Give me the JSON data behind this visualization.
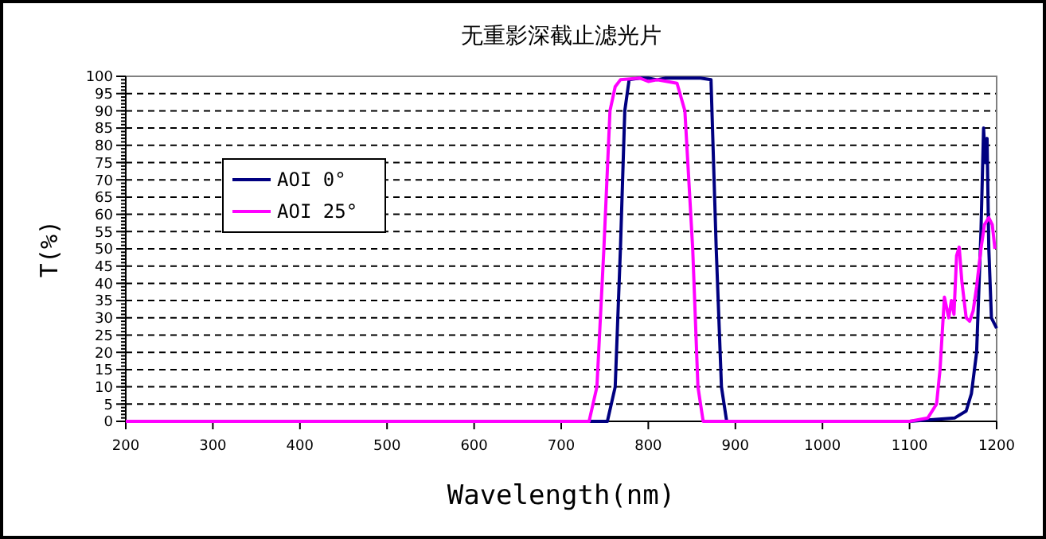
{
  "chart_data": {
    "type": "line",
    "title": "无重影深截止滤光片",
    "xlabel": "Wavelength(nm)",
    "ylabel": "T(%)",
    "xlim": [
      200,
      1200
    ],
    "xticks": [
      200,
      300,
      400,
      500,
      600,
      700,
      800,
      900,
      1000,
      1100,
      1200
    ],
    "ylim": [
      0,
      100
    ],
    "yticks": [
      0,
      5,
      10,
      15,
      20,
      25,
      30,
      35,
      40,
      45,
      50,
      55,
      60,
      65,
      70,
      75,
      80,
      85,
      90,
      95,
      100
    ],
    "grid": "y",
    "legend": "top left",
    "marker": "none",
    "line_style": "solid",
    "series": [
      {
        "name": "AOI 0°",
        "color": "#000080",
        "x": [
          200,
          700,
          753,
          762,
          768,
          773,
          778,
          790,
          800,
          810,
          820,
          840,
          860,
          872,
          878,
          884,
          890,
          900,
          1000,
          1100,
          1152,
          1165,
          1171,
          1177,
          1182,
          1185,
          1187,
          1189,
          1191,
          1194,
          1200
        ],
        "values": [
          0,
          0,
          0,
          10,
          50,
          90,
          99,
          99.5,
          99.5,
          99,
          99.5,
          99.5,
          99.5,
          99,
          50,
          10,
          0,
          0,
          0,
          0,
          1,
          3,
          8,
          20,
          55,
          85,
          75,
          82,
          50,
          30,
          27
        ]
      },
      {
        "name": "AOI 25°",
        "color": "#ff00ff",
        "x": [
          200,
          500,
          700,
          732,
          741,
          749,
          756,
          762,
          768,
          790,
          800,
          810,
          833,
          842,
          851,
          857,
          863,
          900,
          1000,
          1100,
          1121,
          1131,
          1135,
          1140,
          1145,
          1148,
          1151,
          1154,
          1157,
          1160,
          1165,
          1169,
          1173,
          1177,
          1182,
          1186,
          1191,
          1195,
          1198
        ],
        "values": [
          0,
          0,
          0,
          0,
          10,
          50,
          90,
          97,
          99,
          99.5,
          98.5,
          99,
          98,
          90,
          50,
          10,
          0,
          0,
          0,
          0,
          1,
          5,
          15,
          36,
          30,
          35,
          31,
          48,
          50.5,
          40.7,
          30,
          29,
          32,
          39,
          50,
          57,
          59,
          57,
          50
        ]
      }
    ]
  }
}
